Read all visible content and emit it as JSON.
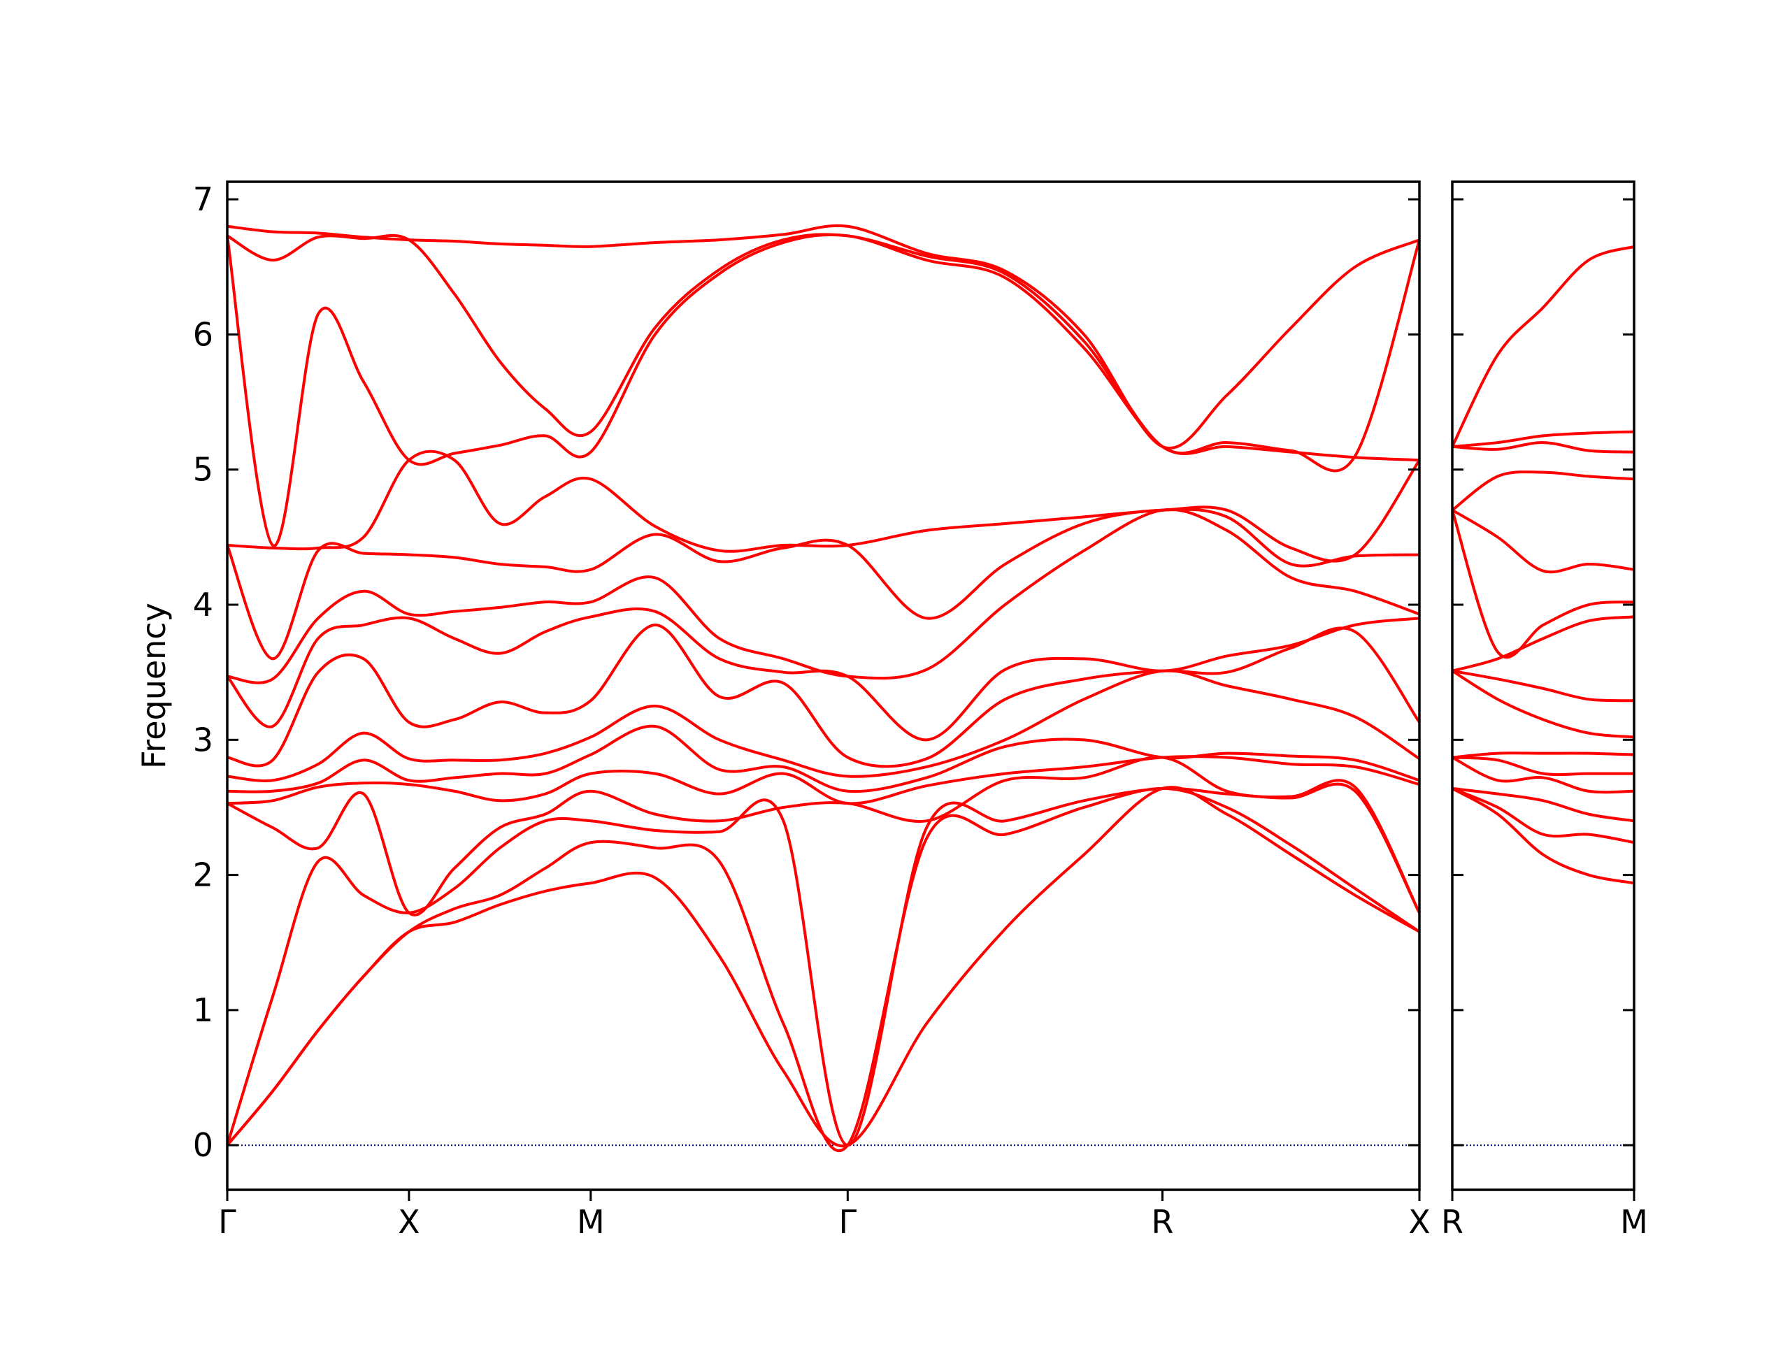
{
  "chart_data": [
    {
      "type": "line",
      "ylabel": "Frequency",
      "color": "#ff0000",
      "show_ytick_labels": true,
      "xlim": [
        0,
        3.28
      ],
      "ylim": [
        -0.33,
        7.13
      ],
      "yticks": [
        0,
        1,
        2,
        3,
        4,
        5,
        6,
        7
      ],
      "xticks": [
        {
          "value": 0,
          "label": "Γ"
        },
        {
          "value": 0.5,
          "label": "X"
        },
        {
          "value": 1.0,
          "label": "M"
        },
        {
          "value": 1.707,
          "label": "Γ"
        },
        {
          "value": 2.573,
          "label": "R"
        },
        {
          "value": 3.28,
          "label": "X"
        }
      ],
      "zero_line": {
        "value": 0,
        "color": "#00008b"
      },
      "x": [
        0,
        0.125,
        0.25,
        0.375,
        0.5,
        0.625,
        0.75,
        0.875,
        1.0,
        1.177,
        1.354,
        1.53,
        1.707,
        1.924,
        2.14,
        2.357,
        2.573,
        2.75,
        2.927,
        3.103,
        3.28
      ],
      "series": [
        {
          "values": [
            0,
            0.4,
            0.85,
            1.25,
            1.58,
            1.65,
            1.78,
            1.88,
            1.94,
            1.98,
            1.4,
            0.55,
            0,
            0.9,
            1.6,
            2.15,
            2.64,
            2.45,
            2.15,
            1.85,
            1.58
          ]
        },
        {
          "values": [
            0,
            0.4,
            0.85,
            1.25,
            1.58,
            1.75,
            1.85,
            2.05,
            2.24,
            2.2,
            2.1,
            0.9,
            0,
            2.27,
            2.3,
            2.5,
            2.64,
            2.5,
            2.22,
            1.9,
            1.58
          ]
        },
        {
          "values": [
            0,
            1.1,
            2.1,
            1.85,
            1.72,
            1.9,
            2.2,
            2.4,
            2.4,
            2.33,
            2.32,
            2.4,
            0,
            2.35,
            2.4,
            2.55,
            2.64,
            2.6,
            2.57,
            2.62,
            1.72
          ]
        },
        {
          "values": [
            2.53,
            2.35,
            2.2,
            2.6,
            1.72,
            2.05,
            2.35,
            2.45,
            2.62,
            2.45,
            2.4,
            2.5,
            2.53,
            2.4,
            2.7,
            2.72,
            2.87,
            2.62,
            2.58,
            2.65,
            1.72
          ]
        },
        {
          "values": [
            2.53,
            2.55,
            2.65,
            2.68,
            2.67,
            2.62,
            2.55,
            2.6,
            2.75,
            2.75,
            2.6,
            2.75,
            2.53,
            2.66,
            2.75,
            2.8,
            2.87,
            2.87,
            2.82,
            2.8,
            2.67
          ]
        },
        {
          "values": [
            2.62,
            2.62,
            2.68,
            2.85,
            2.7,
            2.72,
            2.75,
            2.75,
            2.89,
            3.1,
            2.78,
            2.8,
            2.62,
            2.72,
            2.95,
            3.0,
            2.87,
            2.9,
            2.88,
            2.85,
            2.7
          ]
        },
        {
          "values": [
            2.73,
            2.7,
            2.82,
            3.05,
            2.86,
            2.85,
            2.85,
            2.9,
            3.02,
            3.25,
            3.0,
            2.85,
            2.73,
            2.8,
            3.0,
            3.3,
            3.51,
            3.4,
            3.3,
            3.17,
            2.86
          ]
        },
        {
          "values": [
            2.87,
            2.85,
            3.5,
            3.6,
            3.13,
            3.15,
            3.28,
            3.2,
            3.29,
            3.85,
            3.32,
            3.42,
            2.87,
            2.86,
            3.3,
            3.45,
            3.51,
            3.5,
            3.68,
            3.8,
            3.13
          ]
        },
        {
          "values": [
            3.47,
            3.1,
            3.75,
            3.85,
            3.9,
            3.75,
            3.64,
            3.8,
            3.91,
            3.95,
            3.6,
            3.5,
            3.47,
            3.0,
            3.52,
            3.6,
            3.51,
            3.62,
            3.7,
            3.85,
            3.9
          ]
        },
        {
          "values": [
            3.47,
            3.45,
            3.9,
            4.1,
            3.93,
            3.95,
            3.98,
            4.02,
            4.02,
            4.2,
            3.75,
            3.6,
            3.47,
            3.52,
            4.0,
            4.4,
            4.7,
            4.55,
            4.2,
            4.1,
            3.93
          ]
        },
        {
          "values": [
            4.44,
            3.6,
            4.4,
            4.38,
            4.37,
            4.35,
            4.3,
            4.28,
            4.26,
            4.52,
            4.32,
            4.42,
            4.44,
            3.9,
            4.3,
            4.6,
            4.7,
            4.65,
            4.3,
            4.36,
            4.37
          ]
        },
        {
          "values": [
            4.44,
            4.42,
            4.42,
            4.5,
            5.07,
            5.07,
            4.6,
            4.8,
            4.93,
            4.58,
            4.4,
            4.44,
            4.44,
            4.55,
            4.6,
            4.65,
            4.7,
            4.7,
            4.42,
            4.37,
            5.07
          ]
        },
        {
          "values": [
            6.73,
            4.44,
            6.15,
            5.65,
            5.07,
            5.12,
            5.18,
            5.25,
            5.13,
            6.0,
            6.45,
            6.68,
            6.73,
            6.55,
            6.42,
            5.9,
            5.17,
            5.17,
            5.13,
            5.09,
            5.07
          ]
        },
        {
          "values": [
            6.73,
            6.55,
            6.72,
            6.71,
            6.7,
            6.3,
            5.8,
            5.45,
            5.28,
            6.05,
            6.48,
            6.7,
            6.73,
            6.58,
            6.45,
            5.95,
            5.17,
            5.2,
            5.14,
            5.1,
            6.7
          ]
        },
        {
          "values": [
            6.8,
            6.76,
            6.75,
            6.72,
            6.7,
            6.69,
            6.67,
            6.66,
            6.65,
            6.68,
            6.7,
            6.74,
            6.8,
            6.6,
            6.47,
            6.0,
            5.17,
            5.55,
            6.05,
            6.5,
            6.7
          ]
        }
      ]
    },
    {
      "type": "line",
      "color": "#ff0000",
      "show_ytick_labels": false,
      "xlim": [
        3.28,
        3.78
      ],
      "ylim": [
        -0.33,
        7.13
      ],
      "yticks": [
        0,
        1,
        2,
        3,
        4,
        5,
        6,
        7
      ],
      "xticks": [
        {
          "value": 3.28,
          "label": "R"
        },
        {
          "value": 3.78,
          "label": "M"
        }
      ],
      "zero_line": {
        "value": 0,
        "color": "#00008b"
      },
      "x": [
        3.28,
        3.405,
        3.53,
        3.655,
        3.78
      ],
      "series": [
        {
          "values": [
            2.64,
            2.45,
            2.15,
            2.0,
            1.94
          ]
        },
        {
          "values": [
            2.64,
            2.5,
            2.3,
            2.3,
            2.24
          ]
        },
        {
          "values": [
            2.64,
            2.6,
            2.55,
            2.45,
            2.4
          ]
        },
        {
          "values": [
            2.87,
            2.7,
            2.72,
            2.62,
            2.62
          ]
        },
        {
          "values": [
            2.87,
            2.85,
            2.75,
            2.75,
            2.75
          ]
        },
        {
          "values": [
            2.87,
            2.9,
            2.9,
            2.9,
            2.89
          ]
        },
        {
          "values": [
            3.51,
            3.3,
            3.15,
            3.05,
            3.02
          ]
        },
        {
          "values": [
            3.51,
            3.45,
            3.38,
            3.3,
            3.29
          ]
        },
        {
          "values": [
            3.51,
            3.6,
            3.75,
            3.88,
            3.91
          ]
        },
        {
          "values": [
            4.7,
            3.65,
            3.85,
            4.0,
            4.02
          ]
        },
        {
          "values": [
            4.7,
            4.5,
            4.25,
            4.3,
            4.26
          ]
        },
        {
          "values": [
            4.7,
            4.95,
            4.98,
            4.95,
            4.93
          ]
        },
        {
          "values": [
            5.17,
            5.15,
            5.2,
            5.14,
            5.13
          ]
        },
        {
          "values": [
            5.17,
            5.2,
            5.25,
            5.27,
            5.28
          ]
        },
        {
          "values": [
            5.17,
            5.85,
            6.2,
            6.55,
            6.65
          ]
        }
      ]
    }
  ]
}
